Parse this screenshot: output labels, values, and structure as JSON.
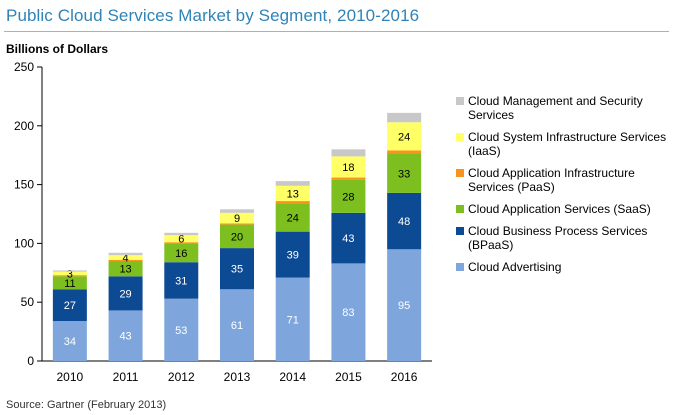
{
  "title": "Public Cloud Services Market by Segment, 2010-2016",
  "source": "Source: Gartner (February 2013)",
  "chart_data": {
    "type": "bar",
    "stacked": true,
    "ylabel": "Billions of Dollars",
    "ylim": [
      0,
      250
    ],
    "yticks": [
      0,
      50,
      100,
      150,
      200,
      250
    ],
    "categories": [
      "2010",
      "2011",
      "2012",
      "2013",
      "2014",
      "2015",
      "2016"
    ],
    "series": [
      {
        "name": "Cloud Advertising",
        "color": "#7ea6dc",
        "values": [
          34,
          43,
          53,
          61,
          71,
          83,
          95
        ],
        "show_labels": true,
        "label_color": "#ffffff"
      },
      {
        "name": "Cloud Business Process Services (BPaaS)",
        "color": "#0d4a94",
        "values": [
          27,
          29,
          31,
          35,
          39,
          43,
          48
        ],
        "show_labels": true,
        "label_color": "#ffffff"
      },
      {
        "name": "Cloud Application Services (SaaS)",
        "color": "#7cbf1f",
        "values": [
          11,
          13,
          16,
          20,
          24,
          28,
          33
        ],
        "show_labels": true,
        "label_color": "#000000"
      },
      {
        "name": "Cloud Application Infrastructure Services (PaaS)",
        "color": "#f7931e",
        "values": [
          1,
          1,
          1,
          1,
          2,
          2,
          3
        ],
        "show_labels": false,
        "label_color": "#000000"
      },
      {
        "name": "Cloud System Infrastructure Services (IaaS)",
        "color": "#ffff66",
        "values": [
          3,
          4,
          6,
          9,
          13,
          18,
          24
        ],
        "show_labels": true,
        "label_color": "#000000"
      },
      {
        "name": "Cloud Management and Security Services",
        "color": "#c8c8c8",
        "values": [
          1,
          2,
          2,
          3,
          4,
          6,
          8
        ],
        "show_labels": false,
        "label_color": "#000000"
      }
    ],
    "legend": [
      {
        "series": 5,
        "lines": [
          "Cloud Management and Security",
          "Services"
        ]
      },
      {
        "series": 4,
        "lines": [
          "Cloud System Infrastructure Services",
          "(IaaS)"
        ]
      },
      {
        "series": 3,
        "lines": [
          "Cloud Application Infrastructure",
          "Services (PaaS)"
        ]
      },
      {
        "series": 2,
        "lines": [
          "Cloud Application Services (SaaS)"
        ]
      },
      {
        "series": 1,
        "lines": [
          "Cloud Business Process Services",
          "(BPaaS)"
        ]
      },
      {
        "series": 0,
        "lines": [
          "Cloud Advertising"
        ]
      }
    ],
    "legend_position": "right",
    "grid": false
  }
}
